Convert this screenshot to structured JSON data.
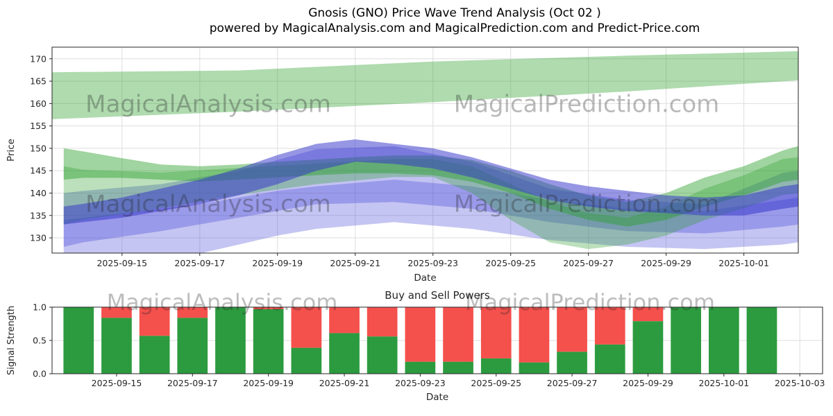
{
  "header": {
    "title_line1": "Gnosis (GNO) Price Wave Trend Analysis (Oct 02 )",
    "title_line2": "powered by MagicalAnalysis.com and MagicalPrediction.com and Predict-Price.com"
  },
  "watermarks": {
    "analysis": "MagicalAnalysis.com",
    "prediction": "MagicalPrediction.com"
  },
  "chart_data": [
    {
      "type": "area",
      "title": "Gnosis (GNO) Price Wave Trend Analysis (Oct 02 )",
      "xlabel": "Date",
      "ylabel": "Price",
      "x_unit": "days, t=0 corresponds to 2025-09-14",
      "xlim": [
        -0.8,
        18.4
      ],
      "ylim": [
        126.6,
        172.6
      ],
      "grid": true,
      "yticks": [
        130,
        135,
        140,
        145,
        150,
        155,
        160,
        165,
        170
      ],
      "xticks": [
        {
          "t": 1,
          "label": "2025-09-15"
        },
        {
          "t": 3,
          "label": "2025-09-17"
        },
        {
          "t": 5,
          "label": "2025-09-19"
        },
        {
          "t": 7,
          "label": "2025-09-21"
        },
        {
          "t": 9,
          "label": "2025-09-23"
        },
        {
          "t": 11,
          "label": "2025-09-25"
        },
        {
          "t": 13,
          "label": "2025-09-27"
        },
        {
          "t": 15,
          "label": "2025-09-29"
        },
        {
          "t": 17,
          "label": "2025-10-01"
        }
      ],
      "bands": [
        {
          "name": "upper-green-forecast-band",
          "color": "#2ca02c",
          "opacity": 0.38,
          "t": [
            -0.8,
            4,
            9,
            14,
            18.4
          ],
          "upper": [
            167,
            167.4,
            169.4,
            170.7,
            171.7
          ],
          "lower": [
            156.5,
            158.2,
            160.3,
            162.7,
            165.2
          ]
        },
        {
          "name": "light-blue-band",
          "color": "#4040d8",
          "opacity": 0.3,
          "t": [
            -0.5,
            0,
            1,
            2,
            3,
            4,
            5,
            6,
            8,
            10,
            12,
            14,
            16,
            18,
            18.4
          ],
          "upper": [
            134,
            134.5,
            135.5,
            136.5,
            137.5,
            139,
            140.5,
            141.5,
            143,
            141.5,
            138.5,
            136.5,
            136,
            138.5,
            139
          ],
          "lower": [
            123.5,
            124.5,
            125,
            125.5,
            126.5,
            128.5,
            130.5,
            132,
            133.5,
            132,
            129.5,
            128,
            127.5,
            128.5,
            129
          ]
        },
        {
          "name": "mid-blue-band",
          "color": "#4040d8",
          "opacity": 0.32,
          "t": [
            -0.5,
            0,
            2,
            4,
            6,
            8,
            10,
            12,
            14,
            16,
            18,
            18.4
          ],
          "upper": [
            140,
            140.5,
            142,
            145,
            149.8,
            150.5,
            147,
            141,
            138.5,
            137.5,
            144.5,
            145
          ],
          "lower": [
            128,
            129,
            131.5,
            134.5,
            137.5,
            138,
            136.5,
            133.5,
            131.5,
            131,
            132.5,
            133
          ]
        },
        {
          "name": "lower-green-band",
          "color": "#2ca02c",
          "opacity": 0.32,
          "t": [
            -0.5,
            0,
            2,
            4,
            6,
            8,
            9,
            10,
            11,
            12,
            13,
            14,
            15,
            16,
            17,
            18,
            18.4
          ],
          "upper": [
            146,
            145.2,
            144.6,
            145.6,
            146.6,
            147.6,
            147.6,
            146,
            142,
            138,
            135.5,
            134.5,
            137,
            141,
            144,
            147.6,
            148
          ],
          "lower": [
            133,
            134,
            136.6,
            139.6,
            142,
            143.6,
            143.6,
            140,
            134,
            129,
            127.5,
            128.5,
            130.5,
            134,
            136.6,
            139.6,
            140
          ]
        },
        {
          "name": "mid-green-band",
          "color": "#2ca02c",
          "opacity": 0.45,
          "t": [
            -0.5,
            0,
            1,
            2,
            3,
            4,
            5,
            6,
            7,
            8,
            9,
            10,
            11,
            12,
            13,
            14,
            15,
            16,
            17,
            18,
            18.4
          ],
          "upper": [
            150,
            149.3,
            147.8,
            146.4,
            146,
            146.4,
            147,
            147.5,
            148,
            148.4,
            148.4,
            147.4,
            145,
            142,
            139.5,
            138,
            140,
            143.5,
            146,
            149.5,
            150.5
          ],
          "lower": [
            143,
            143.4,
            143.4,
            143,
            142.6,
            143,
            143.5,
            144,
            144.4,
            144.4,
            144,
            142.5,
            140,
            136.5,
            134,
            132.5,
            134,
            137,
            139.5,
            142.5,
            143
          ]
        },
        {
          "name": "dark-blue-band",
          "color": "#3535cc",
          "opacity": 0.52,
          "t": [
            -0.5,
            0,
            1,
            2,
            3,
            4,
            5,
            6,
            7,
            8,
            9,
            10,
            11,
            12,
            13,
            14,
            15,
            16,
            17,
            18,
            18.4
          ],
          "upper": [
            137,
            137.6,
            139,
            141,
            143,
            145.5,
            148.5,
            151,
            152,
            151,
            150,
            148,
            145.5,
            143,
            141.5,
            140.5,
            139.5,
            139,
            139.5,
            141.5,
            142
          ],
          "lower": [
            133,
            133.5,
            134.5,
            136,
            137.5,
            139.5,
            142,
            145,
            147,
            146.5,
            145.5,
            143.5,
            141,
            138.5,
            137,
            136,
            135.5,
            135,
            135,
            136.5,
            137
          ]
        }
      ]
    },
    {
      "type": "bar",
      "stacked": true,
      "title": "Buy and Sell Powers",
      "xlabel": "Date",
      "ylabel": "Signal Strength",
      "ylim": [
        0,
        1.0
      ],
      "xlim": [
        -0.7,
        19.6
      ],
      "bar_width_days": 0.8,
      "grid": true,
      "yticks": [
        "0.0",
        "0.5",
        "1.0"
      ],
      "xticks": [
        {
          "t": 1,
          "label": "2025-09-15"
        },
        {
          "t": 3,
          "label": "2025-09-17"
        },
        {
          "t": 5,
          "label": "2025-09-19"
        },
        {
          "t": 7,
          "label": "2025-09-21"
        },
        {
          "t": 9,
          "label": "2025-09-23"
        },
        {
          "t": 11,
          "label": "2025-09-25"
        },
        {
          "t": 13,
          "label": "2025-09-27"
        },
        {
          "t": 15,
          "label": "2025-09-29"
        },
        {
          "t": 17,
          "label": "2025-10-01"
        },
        {
          "t": 19,
          "label": "2025-10-03"
        }
      ],
      "categories": [
        "2025-09-14",
        "2025-09-15",
        "2025-09-16",
        "2025-09-17",
        "2025-09-18",
        "2025-09-19",
        "2025-09-20",
        "2025-09-21",
        "2025-09-22",
        "2025-09-23",
        "2025-09-24",
        "2025-09-25",
        "2025-09-26",
        "2025-09-27",
        "2025-09-28",
        "2025-09-29",
        "2025-09-30",
        "2025-10-01",
        "2025-10-02"
      ],
      "series": [
        {
          "name": "Buy",
          "color": "#2c9b3f",
          "values": [
            1.0,
            0.84,
            0.57,
            0.84,
            1.0,
            0.97,
            0.39,
            0.61,
            0.56,
            0.18,
            0.18,
            0.23,
            0.17,
            0.33,
            0.44,
            0.79,
            1.0,
            1.0,
            1.0
          ]
        },
        {
          "name": "Sell",
          "color": "#f4504c",
          "values": [
            0.0,
            0.16,
            0.43,
            0.16,
            0.0,
            0.03,
            0.61,
            0.39,
            0.44,
            0.82,
            0.82,
            0.77,
            0.83,
            0.67,
            0.56,
            0.21,
            0.0,
            0.0,
            0.0
          ]
        }
      ]
    }
  ]
}
